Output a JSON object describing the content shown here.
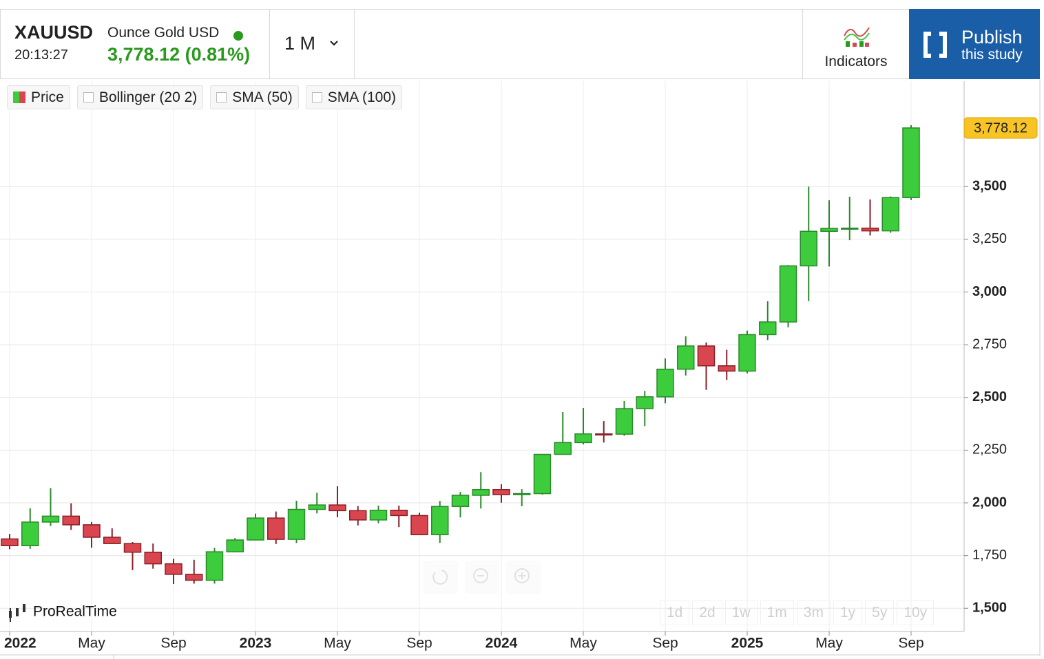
{
  "header": {
    "symbol": "XAUUSD",
    "name": "Ounce Gold USD",
    "time": "20:13:27",
    "price": "3,778.12 (0.81%)",
    "period": "1 M",
    "indicators": "Indicators",
    "publish": [
      "Publish",
      "this study"
    ]
  },
  "toggles": [
    "Price",
    "Bollinger (20 2)",
    "SMA (50)",
    "SMA (100)"
  ],
  "branding": "ProRealTime",
  "periods": [
    "1d",
    "2d",
    "1w",
    "1m",
    "3m",
    "1y",
    "5y",
    "10y"
  ],
  "chart_data": {
    "type": "candlestick",
    "categories": [
      "2022",
      null,
      null,
      null,
      "May",
      null,
      null,
      null,
      "Sep",
      null,
      null,
      null,
      "2023",
      null,
      null,
      null,
      "May",
      null,
      null,
      null,
      "Sep",
      null,
      null,
      null,
      "2024",
      null,
      null,
      null,
      "May",
      null,
      null,
      null,
      "Sep",
      null,
      null,
      null,
      "2025",
      null,
      null,
      null,
      "May",
      null,
      null,
      null,
      "Sep"
    ],
    "open": [
      1829,
      1797,
      1909,
      1937,
      1896,
      1837,
      1807,
      1766,
      1711,
      1661,
      1633,
      1768,
      1824,
      1928,
      1827,
      1969,
      1990,
      1963,
      1919,
      1965,
      1940,
      1849,
      1983,
      2036,
      2063,
      2039,
      2044,
      2230,
      2286,
      2327,
      2326,
      2447,
      2503,
      2634,
      2744,
      2650,
      2625,
      2798,
      2858,
      3124,
      3288,
      3302,
      3303,
      3290,
      3448
    ],
    "high": [
      1853,
      1974,
      2070,
      1998,
      1909,
      1879,
      1814,
      1807,
      1735,
      1730,
      1786,
      1833,
      1949,
      1959,
      2010,
      2048,
      2079,
      1985,
      1987,
      1987,
      1953,
      2009,
      2052,
      2146,
      2088,
      2065,
      2222,
      2431,
      2450,
      2388,
      2483,
      2531,
      2685,
      2790,
      2761,
      2726,
      2817,
      2956,
      3128,
      3500,
      3435,
      3452,
      3439,
      3453,
      3791
    ],
    "low": [
      1780,
      1782,
      1890,
      1872,
      1787,
      1805,
      1681,
      1688,
      1615,
      1617,
      1617,
      1765,
      1822,
      1805,
      1810,
      1950,
      1932,
      1893,
      1903,
      1885,
      1848,
      1810,
      1931,
      1973,
      2001,
      1984,
      2039,
      2228,
      2277,
      2286,
      2318,
      2364,
      2472,
      2604,
      2536,
      2583,
      2614,
      2772,
      2833,
      2957,
      3121,
      3246,
      3268,
      3281,
      3436
    ],
    "close": [
      1797,
      1909,
      1937,
      1896,
      1837,
      1807,
      1766,
      1711,
      1661,
      1633,
      1768,
      1824,
      1928,
      1827,
      1969,
      1990,
      1963,
      1919,
      1965,
      1940,
      1849,
      1983,
      2036,
      2063,
      2039,
      2044,
      2230,
      2286,
      2327,
      2326,
      2447,
      2503,
      2634,
      2744,
      2650,
      2625,
      2798,
      2858,
      3124,
      3288,
      3302,
      3303,
      3290,
      3448,
      3778.12
    ],
    "up_color": "#3ccc3c",
    "down_color": "#d9464f",
    "ylim": [
      1390,
      4000
    ],
    "yticks": [
      {
        "value": 1500,
        "label": "1,500"
      },
      {
        "value": 1750,
        "label": "1,750"
      },
      {
        "value": 2000,
        "label": "2,000"
      },
      {
        "value": 2250,
        "label": "2,250"
      },
      {
        "value": 2500,
        "label": "2,500"
      },
      {
        "value": 2750,
        "label": "2,750"
      },
      {
        "value": 3000,
        "label": "3,000"
      },
      {
        "value": 3250,
        "label": "3,250"
      },
      {
        "value": 3500,
        "label": "3,500"
      }
    ],
    "price_tag": {
      "value": 3778.12,
      "label": "3,778.12"
    },
    "grid": true
  }
}
